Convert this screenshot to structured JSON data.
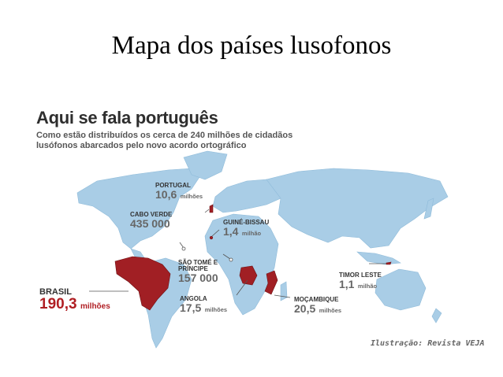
{
  "slide_title": "Mapa dos países lusofonos",
  "map": {
    "title": "Aqui se fala português",
    "subtitle": "Como estão distribuídos os cerca de 240 milhões de cidadãos lusófonos abarcados pelo novo acordo ortográfico",
    "credit": "Ilustração: Revista VEJA",
    "colors": {
      "land": "#a9cde6",
      "lusophone": "#a11f24",
      "leader": "#555555"
    },
    "countries": [
      {
        "name": "PORTUGAL",
        "population": "10,6",
        "unit": "milhões"
      },
      {
        "name": "CABO VERDE",
        "population": "435 000",
        "unit": ""
      },
      {
        "name": "GUINÉ-BISSAU",
        "population": "1,4",
        "unit": "milhão"
      },
      {
        "name": "SÃO TOMÉ E PRÍNCIPE",
        "population": "157 000",
        "unit": ""
      },
      {
        "name": "BRASIL",
        "population": "190,3",
        "unit": "milhões"
      },
      {
        "name": "ANGOLA",
        "population": "17,5",
        "unit": "milhões"
      },
      {
        "name": "MOÇAMBIQUE",
        "population": "20,5",
        "unit": "milhões"
      },
      {
        "name": "TIMOR LESTE",
        "population": "1,1",
        "unit": "milhão"
      }
    ]
  }
}
